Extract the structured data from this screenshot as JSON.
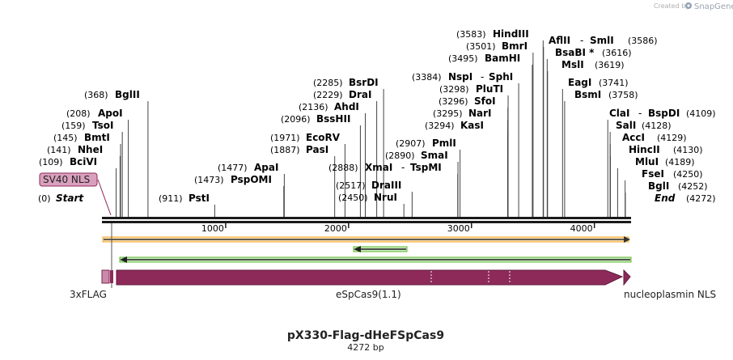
{
  "credit": {
    "prefix": "Created by",
    "brand": "SnapGene"
  },
  "title": "pX330-Flag-dHeFSpCas9",
  "length_label": "4272 bp",
  "total_bp": 4272,
  "scale_ticks": [
    1000,
    2000,
    3000,
    4000
  ],
  "sites_left": [
    {
      "pos": "(368)",
      "bp": 368,
      "names": [
        "BglII"
      ]
    },
    {
      "pos": "(208)",
      "bp": 208,
      "names": [
        "ApoI"
      ]
    },
    {
      "pos": "(159)",
      "bp": 159,
      "names": [
        "TsoI"
      ]
    },
    {
      "pos": "(145)",
      "bp": 145,
      "names": [
        "BmtI"
      ]
    },
    {
      "pos": "(141)",
      "bp": 141,
      "names": [
        "NheI"
      ]
    },
    {
      "pos": "(109)",
      "bp": 109,
      "names": [
        "BciVI"
      ]
    },
    {
      "pos": "(0)",
      "bp": 0,
      "names": [
        "Start"
      ],
      "italic": true
    },
    {
      "pos": "(911)",
      "bp": 911,
      "names": [
        "PstI"
      ]
    },
    {
      "pos": "(1477)",
      "bp": 1477,
      "names": [
        "ApaI"
      ]
    },
    {
      "pos": "(1473)",
      "bp": 1473,
      "names": [
        "PspOMI"
      ]
    },
    {
      "pos": "(2285)",
      "bp": 2285,
      "names": [
        "BsrDI"
      ]
    },
    {
      "pos": "(2229)",
      "bp": 2229,
      "names": [
        "DraI"
      ]
    },
    {
      "pos": "(2136)",
      "bp": 2136,
      "names": [
        "AhdI"
      ]
    },
    {
      "pos": "(2096)",
      "bp": 2096,
      "names": [
        "BssHII"
      ]
    },
    {
      "pos": "(1971)",
      "bp": 1971,
      "names": [
        "EcoRV"
      ]
    },
    {
      "pos": "(1887)",
      "bp": 1887,
      "names": [
        "PasI"
      ]
    },
    {
      "pos": "(2888)",
      "bp": 2888,
      "names": [
        "XmaI",
        "TspMI"
      ]
    },
    {
      "pos": "(2517)",
      "bp": 2517,
      "names": [
        "DraIII"
      ]
    },
    {
      "pos": "(2450)",
      "bp": 2450,
      "names": [
        "NruI"
      ]
    },
    {
      "pos": "(2907)",
      "bp": 2907,
      "names": [
        "PmlI"
      ]
    },
    {
      "pos": "(2890)",
      "bp": 2890,
      "names": [
        "SmaI"
      ]
    },
    {
      "pos": "(3583)",
      "bp": 3583,
      "names": [
        "HindIII"
      ]
    },
    {
      "pos": "(3501)",
      "bp": 3501,
      "names": [
        "BmrI"
      ]
    },
    {
      "pos": "(3495)",
      "bp": 3495,
      "names": [
        "BamHI"
      ]
    },
    {
      "pos": "(3384)",
      "bp": 3384,
      "names": [
        "NspI",
        "SphI"
      ]
    },
    {
      "pos": "(3298)",
      "bp": 3298,
      "names": [
        "PluTI"
      ]
    },
    {
      "pos": "(3296)",
      "bp": 3296,
      "names": [
        "SfoI"
      ]
    },
    {
      "pos": "(3295)",
      "bp": 3295,
      "names": [
        "NarI"
      ]
    },
    {
      "pos": "(3294)",
      "bp": 3294,
      "names": [
        "KasI"
      ]
    }
  ],
  "sites_right": [
    {
      "pos": "(3586)",
      "bp": 3586,
      "names": [
        "AflII",
        "SmlI"
      ]
    },
    {
      "pos": "(3616)",
      "bp": 3616,
      "names": [
        "BsaBI *"
      ]
    },
    {
      "pos": "(3619)",
      "bp": 3619,
      "names": [
        "MslI"
      ]
    },
    {
      "pos": "(3741)",
      "bp": 3741,
      "names": [
        "EagI"
      ]
    },
    {
      "pos": "(3758)",
      "bp": 3758,
      "names": [
        "BsmI"
      ]
    },
    {
      "pos": "(4109)",
      "bp": 4109,
      "names": [
        "ClaI",
        "BspDI"
      ]
    },
    {
      "pos": "(4128)",
      "bp": 4128,
      "names": [
        "SalI"
      ]
    },
    {
      "pos": "(4129)",
      "bp": 4129,
      "names": [
        "AccI"
      ]
    },
    {
      "pos": "(4130)",
      "bp": 4130,
      "names": [
        "HincII"
      ]
    },
    {
      "pos": "(4189)",
      "bp": 4189,
      "names": [
        "MluI"
      ]
    },
    {
      "pos": "(4250)",
      "bp": 4250,
      "names": [
        "FseI"
      ]
    },
    {
      "pos": "(4252)",
      "bp": 4252,
      "names": [
        "BglI"
      ]
    },
    {
      "pos": "(4272)",
      "bp": 4272,
      "names": [
        "End"
      ],
      "italic": true
    }
  ],
  "features": {
    "sv40_nls": "SV40 NLS",
    "flag": "3xFLAG",
    "cas9": "eSpCas9(1.1)",
    "nucleoplasmin": "nucleoplasmin NLS"
  },
  "colors": {
    "backbone": "#1a1a1a",
    "orange_arrow": "#f5a623",
    "green_arrow": "#5cb82e",
    "cas9": "#8e2a5a",
    "nls_fill": "#d9a0bd",
    "flag_fill": "#c98aa9"
  }
}
